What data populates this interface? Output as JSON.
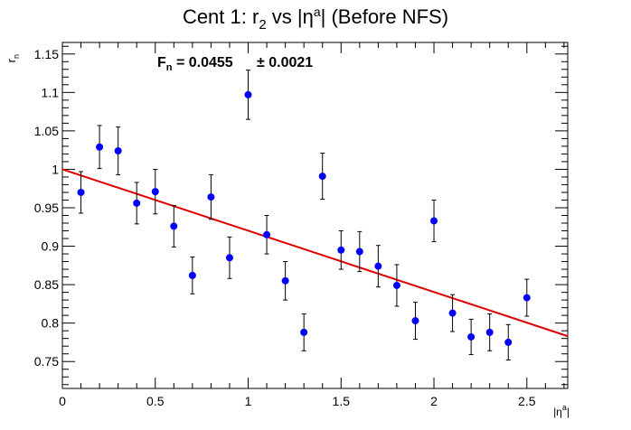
{
  "chart_data": {
    "type": "scatter",
    "title": {
      "main": "Cent 1: r",
      "sub": "2",
      "rest": " vs |η",
      "sup": "a",
      "tail": "| (Before NFS)"
    },
    "ylabel": {
      "main": "r",
      "sub": "n"
    },
    "xlabel": {
      "main": "|η",
      "sup": "a",
      "tail": "|"
    },
    "xlim": [
      0,
      2.72
    ],
    "ylim": [
      0.715,
      1.165
    ],
    "xticks": [
      0,
      0.5,
      1,
      1.5,
      2,
      2.5
    ],
    "xtick_labels": [
      "0",
      "0.5",
      "1",
      "1.5",
      "2",
      "2.5"
    ],
    "yticks": [
      0.75,
      0.8,
      0.85,
      0.9,
      0.95,
      1,
      1.05,
      1.1,
      1.15
    ],
    "ytick_labels": [
      "0.75",
      "0.8",
      "0.85",
      "0.9",
      "0.95",
      "1",
      "1.05",
      "1.1",
      "1.15"
    ],
    "annotation": {
      "prefix": "F",
      "sub": "n",
      "value": " = 0.0455",
      "err": "± 0.0021"
    },
    "points": [
      {
        "x": 0.1,
        "y": 0.97,
        "err": 0.027
      },
      {
        "x": 0.2,
        "y": 1.029,
        "err": 0.028
      },
      {
        "x": 0.3,
        "y": 1.024,
        "err": 0.031
      },
      {
        "x": 0.4,
        "y": 0.956,
        "err": 0.027
      },
      {
        "x": 0.5,
        "y": 0.971,
        "err": 0.029
      },
      {
        "x": 0.6,
        "y": 0.926,
        "err": 0.027
      },
      {
        "x": 0.7,
        "y": 0.862,
        "err": 0.024
      },
      {
        "x": 0.8,
        "y": 0.964,
        "err": 0.029
      },
      {
        "x": 0.9,
        "y": 0.885,
        "err": 0.027
      },
      {
        "x": 1.0,
        "y": 1.097,
        "err": 0.032
      },
      {
        "x": 1.1,
        "y": 0.915,
        "err": 0.025
      },
      {
        "x": 1.2,
        "y": 0.855,
        "err": 0.025
      },
      {
        "x": 1.3,
        "y": 0.788,
        "err": 0.024
      },
      {
        "x": 1.4,
        "y": 0.991,
        "err": 0.03
      },
      {
        "x": 1.5,
        "y": 0.895,
        "err": 0.025
      },
      {
        "x": 1.6,
        "y": 0.893,
        "err": 0.026
      },
      {
        "x": 1.7,
        "y": 0.874,
        "err": 0.027
      },
      {
        "x": 1.8,
        "y": 0.849,
        "err": 0.027
      },
      {
        "x": 1.9,
        "y": 0.803,
        "err": 0.024
      },
      {
        "x": 2.0,
        "y": 0.933,
        "err": 0.027
      },
      {
        "x": 2.1,
        "y": 0.813,
        "err": 0.024
      },
      {
        "x": 2.2,
        "y": 0.782,
        "err": 0.023
      },
      {
        "x": 2.3,
        "y": 0.788,
        "err": 0.024
      },
      {
        "x": 2.4,
        "y": 0.775,
        "err": 0.023
      },
      {
        "x": 2.5,
        "y": 0.833,
        "err": 0.024
      }
    ],
    "fit": {
      "x": [
        0,
        2.72
      ],
      "y": [
        1.0,
        0.783
      ]
    },
    "colors": {
      "points": "#0000ff",
      "fit": "#e00000",
      "axis": "#000000",
      "errors": "#000000"
    },
    "grid": false,
    "legend": "none"
  }
}
